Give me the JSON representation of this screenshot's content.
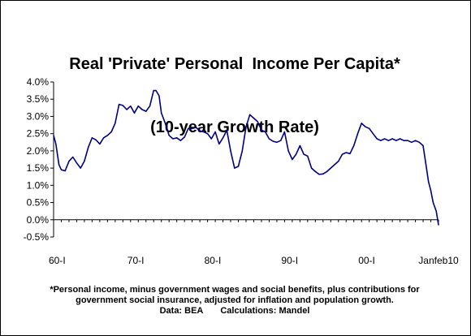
{
  "chart_data": {
    "type": "line",
    "title_lines": [
      "Real 'Private' Personal  Income Per Capita*",
      "(10-year Growth Rate)"
    ],
    "xlabel": "",
    "ylabel": "",
    "x_ticks": [
      "60-I",
      "70-I",
      "80-I",
      "90-I",
      "00-I",
      "Janfeb10"
    ],
    "y_ticks": [
      "4.0%",
      "3.5%",
      "3.0%",
      "2.5%",
      "2.0%",
      "1.5%",
      "1.0%",
      "0.5%",
      "0.0%",
      "-0.5%"
    ],
    "ylim": [
      -0.5,
      4.0
    ],
    "xlim": [
      1960.0,
      2010.0
    ],
    "grid": false,
    "legend": "none",
    "line_color": "#000080",
    "series": [
      {
        "x": [
          1960.0,
          1960.3,
          1960.7,
          1961.0,
          1961.5,
          1962.0,
          1962.5,
          1963.0,
          1963.5,
          1964.0,
          1964.5,
          1965.0,
          1965.5,
          1966.0,
          1966.5,
          1967.0,
          1967.5,
          1968.0,
          1968.5,
          1969.0,
          1969.5,
          1970.0,
          1970.5,
          1971.0,
          1971.5,
          1972.0,
          1972.5,
          1973.0,
          1973.3,
          1973.7,
          1974.0,
          1974.5,
          1975.0,
          1975.5,
          1976.0,
          1976.5,
          1977.0,
          1977.5,
          1978.0,
          1978.5,
          1979.0,
          1979.5,
          1980.0,
          1980.5,
          1981.0,
          1981.5,
          1982.0,
          1982.5,
          1983.0,
          1983.5,
          1984.0,
          1984.5,
          1985.0,
          1985.5,
          1986.0,
          1986.5,
          1987.0,
          1987.5,
          1988.0,
          1988.5,
          1989.0,
          1989.5,
          1990.0,
          1990.5,
          1991.0,
          1991.5,
          1992.0,
          1992.5,
          1993.0,
          1993.5,
          1994.0,
          1994.5,
          1995.0,
          1995.5,
          1996.0,
          1996.5,
          1997.0,
          1997.5,
          1998.0,
          1998.5,
          1999.0,
          1999.5,
          2000.0,
          2000.5,
          2001.0,
          2001.5,
          2002.0,
          2002.5,
          2003.0,
          2003.5,
          2004.0,
          2004.5,
          2005.0,
          2005.5,
          2006.0,
          2006.5,
          2007.0,
          2007.5,
          2008.0,
          2008.3,
          2008.7,
          2009.0,
          2009.3,
          2009.7,
          2010.0
        ],
        "values": [
          2.45,
          2.2,
          1.6,
          1.45,
          1.42,
          1.7,
          1.82,
          1.65,
          1.5,
          1.7,
          2.1,
          2.38,
          2.32,
          2.2,
          2.38,
          2.45,
          2.55,
          2.8,
          3.35,
          3.32,
          3.2,
          3.3,
          3.1,
          3.3,
          3.2,
          3.15,
          3.3,
          3.75,
          3.75,
          3.6,
          3.1,
          2.8,
          2.45,
          2.35,
          2.38,
          2.3,
          2.4,
          2.65,
          2.65,
          2.68,
          2.58,
          2.55,
          2.5,
          2.35,
          2.55,
          2.2,
          2.38,
          2.6,
          2.0,
          1.5,
          1.55,
          2.0,
          2.7,
          3.05,
          2.95,
          2.85,
          2.6,
          2.55,
          2.35,
          2.28,
          2.25,
          2.3,
          2.55,
          2.0,
          1.75,
          1.9,
          2.15,
          1.9,
          1.85,
          1.5,
          1.4,
          1.32,
          1.33,
          1.4,
          1.5,
          1.6,
          1.7,
          1.9,
          1.95,
          1.92,
          2.15,
          2.5,
          2.8,
          2.7,
          2.65,
          2.5,
          2.35,
          2.3,
          2.35,
          2.3,
          2.35,
          2.3,
          2.35,
          2.3,
          2.3,
          2.25,
          2.3,
          2.25,
          2.15,
          1.7,
          1.1,
          0.85,
          0.5,
          0.25,
          -0.15
        ]
      }
    ]
  },
  "footnote": {
    "line1": "*Personal income, minus government wages and social benefits, plus contributions for",
    "line2": "government social insurance, adjusted for inflation and population growth.",
    "line3": "Data: BEA       Calculations: Mandel"
  }
}
